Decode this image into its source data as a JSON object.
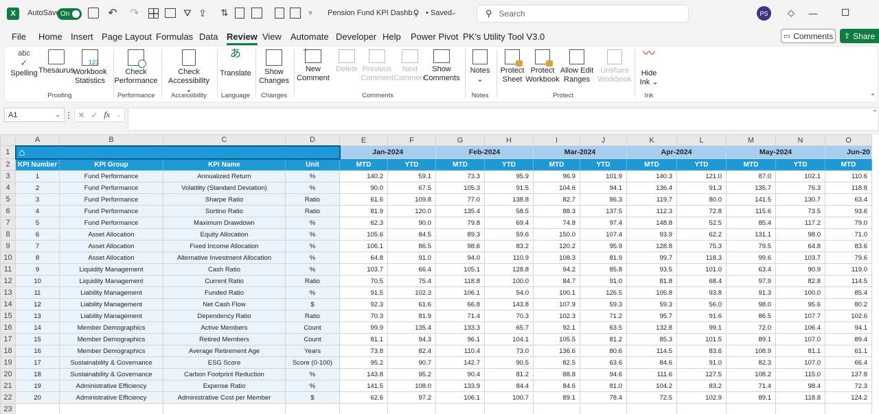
{
  "app": {
    "autosave_label": "AutoSave",
    "autosave_state": "On",
    "filename": "Pension Fund KPI Dashb...",
    "saved_status": "• Saved",
    "search_placeholder": "Search",
    "user_initials": "PS"
  },
  "menu": [
    "File",
    "Home",
    "Insert",
    "Page Layout",
    "Formulas",
    "Data",
    "Review",
    "View",
    "Automate",
    "Developer",
    "Help",
    "Power Pivot",
    "PK's Utility Tool V3.0"
  ],
  "active_menu": "Review",
  "comments_button": "Comments",
  "share_button": "Share",
  "ribbon": {
    "spelling": "Spelling",
    "thesaurus": "Thesaurus",
    "workbook_stats_1": "Workbook",
    "workbook_stats_2": "Statistics",
    "proofing": "Proofing",
    "check_perf_1": "Check",
    "check_perf_2": "Performance",
    "performance": "Performance",
    "check_access_1": "Check",
    "check_access_2": "Accessibility",
    "accessibility": "Accessibility",
    "translate": "Translate",
    "language": "Language",
    "show_changes_1": "Show",
    "show_changes_2": "Changes",
    "changes": "Changes",
    "new_comment_1": "New",
    "new_comment_2": "Comment",
    "delete": "Delete",
    "prev_comment_1": "Previous",
    "prev_comment_2": "Comment",
    "next_comment_1": "Next",
    "next_comment_2": "Comment",
    "show_comments_1": "Show",
    "show_comments_2": "Comments",
    "comments": "Comments",
    "notes": "Notes",
    "notes_group": "Notes",
    "protect_sheet_1": "Protect",
    "protect_sheet_2": "Sheet",
    "protect_wb_1": "Protect",
    "protect_wb_2": "Workbook",
    "allow_edit_1": "Allow Edit",
    "allow_edit_2": "Ranges",
    "unshare_1": "Unshare",
    "unshare_2": "Workbook",
    "protect": "Protect",
    "hide_ink_1": "Hide",
    "hide_ink_2": "Ink",
    "ink": "Ink"
  },
  "namebox": "A1",
  "fx": "fx",
  "columns": [
    "A",
    "B",
    "C",
    "D",
    "E",
    "F",
    "G",
    "H",
    "I",
    "J",
    "K",
    "L",
    "M",
    "N",
    "O"
  ],
  "months": [
    "Jan-2024",
    "Feb-2024",
    "Mar-2024",
    "Apr-2024",
    "May-2024",
    "Jun-20"
  ],
  "headers": [
    "KPI Number",
    "KPI Group",
    "KPI Name",
    "Unit"
  ],
  "mtd": "MTD",
  "ytd": "YTD",
  "rows": [
    [
      "1",
      "Fund Performance",
      "Annualized Return",
      "%",
      "140.2",
      "59.1",
      "73.3",
      "95.9",
      "96.9",
      "101.9",
      "140.3",
      "121.0",
      "87.0",
      "102.1",
      "110.6"
    ],
    [
      "2",
      "Fund Performance",
      "Volatility (Standard Deviation)",
      "%",
      "90.0",
      "67.5",
      "105.3",
      "91.5",
      "104.6",
      "94.1",
      "136.4",
      "91.3",
      "135.7",
      "76.3",
      "118.8"
    ],
    [
      "3",
      "Fund Performance",
      "Sharpe Ratio",
      "Ratio",
      "61.6",
      "109.8",
      "77.0",
      "138.8",
      "82.7",
      "86.3",
      "119.7",
      "80.0",
      "141.5",
      "130.7",
      "63.4"
    ],
    [
      "4",
      "Fund Performance",
      "Sortino Ratio",
      "Ratio",
      "81.9",
      "120.0",
      "135.4",
      "58.5",
      "88.3",
      "137.5",
      "112.3",
      "72.8",
      "115.6",
      "73.5",
      "93.6"
    ],
    [
      "5",
      "Fund Performance",
      "Maximum Drawdown",
      "%",
      "62.3",
      "90.0",
      "79.8",
      "69.4",
      "74.8",
      "97.4",
      "148.8",
      "52.5",
      "85.4",
      "117.2",
      "79.0"
    ],
    [
      "6",
      "Asset Allocation",
      "Equity Allocation",
      "%",
      "105.6",
      "84.5",
      "89.3",
      "59.6",
      "150.0",
      "107.4",
      "93.9",
      "62.2",
      "131.1",
      "98.0",
      "71.0"
    ],
    [
      "7",
      "Asset Allocation",
      "Fixed Income Allocation",
      "%",
      "106.1",
      "86.5",
      "98.6",
      "83.2",
      "120.2",
      "95.9",
      "128.8",
      "75.3",
      "79.5",
      "64.8",
      "83.6"
    ],
    [
      "8",
      "Asset Allocation",
      "Alternative Investment Allocation",
      "%",
      "64.8",
      "91.0",
      "94.0",
      "110.9",
      "108.3",
      "81.9",
      "99.7",
      "118.3",
      "99.6",
      "103.7",
      "79.6"
    ],
    [
      "9",
      "Liquidity Management",
      "Cash Ratio",
      "%",
      "103.7",
      "66.4",
      "105.1",
      "128.8",
      "94.2",
      "85.8",
      "93.5",
      "101.0",
      "63.4",
      "90.9",
      "119.0"
    ],
    [
      "10",
      "Liquidity Management",
      "Current Ratio",
      "Ratio",
      "70.5",
      "75.4",
      "118.8",
      "100.0",
      "84.7",
      "91.0",
      "81.8",
      "68.4",
      "97.9",
      "82.8",
      "114.5"
    ],
    [
      "11",
      "Liability Management",
      "Funded Ratio",
      "%",
      "91.5",
      "102.3",
      "106.1",
      "54.0",
      "100.1",
      "126.5",
      "105.8",
      "93.8",
      "91.3",
      "100.0",
      "85.4"
    ],
    [
      "12",
      "Liability Management",
      "Net Cash Flow",
      "$",
      "92.3",
      "61.6",
      "66.8",
      "143.8",
      "107.9",
      "59.3",
      "59.3",
      "56.0",
      "98.0",
      "95.6",
      "80.2"
    ],
    [
      "13",
      "Liability Management",
      "Dependency Ratio",
      "Ratio",
      "70.3",
      "81.9",
      "71.4",
      "70.3",
      "102.3",
      "71.2",
      "95.7",
      "91.6",
      "86.5",
      "107.7",
      "102.6"
    ],
    [
      "14",
      "Member Demographics",
      "Active Members",
      "Count",
      "99.9",
      "135.4",
      "133.3",
      "65.7",
      "92.1",
      "63.5",
      "132.8",
      "99.1",
      "72.0",
      "106.4",
      "94.1"
    ],
    [
      "15",
      "Member Demographics",
      "Retired Members",
      "Count",
      "81.1",
      "94.3",
      "96.1",
      "104.1",
      "105.5",
      "81.2",
      "85.3",
      "101.5",
      "89.1",
      "107.0",
      "89.4"
    ],
    [
      "16",
      "Member Demographics",
      "Average Retirement Age",
      "Years",
      "73.8",
      "82.4",
      "110.4",
      "73.0",
      "136.6",
      "80.6",
      "114.5",
      "83.6",
      "108.9",
      "81.1",
      "61.1"
    ],
    [
      "17",
      "Sustainability & Governance",
      "ESG Score",
      "Score (0-100)",
      "95.2",
      "90.7",
      "142.7",
      "90.5",
      "82.5",
      "63.6",
      "84.6",
      "91.0",
      "82.3",
      "107.0",
      "66.4"
    ],
    [
      "18",
      "Sustainability & Governance",
      "Carbon Footprint Reduction",
      "%",
      "143.8",
      "95.2",
      "90.4",
      "81.2",
      "88.8",
      "94.6",
      "111.6",
      "127.5",
      "108.2",
      "115.0",
      "137.8"
    ],
    [
      "19",
      "Administrative Efficiency",
      "Expense Ratio",
      "%",
      "141.5",
      "108.0",
      "133.9",
      "84.4",
      "84.6",
      "81.0",
      "104.2",
      "83.2",
      "71.4",
      "98.4",
      "72.3"
    ],
    [
      "20",
      "Administrative Efficiency",
      "Administrative Cost per Member",
      "$",
      "62.6",
      "97.2",
      "106.1",
      "100.7",
      "89.1",
      "78.4",
      "72.5",
      "102.9",
      "89.1",
      "118.8",
      "124.2"
    ]
  ]
}
